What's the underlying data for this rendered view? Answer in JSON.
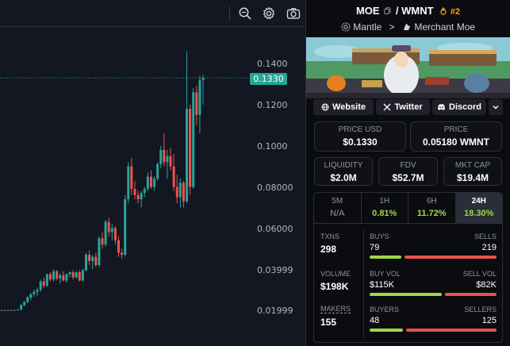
{
  "chart": {
    "y_ticks": [
      "0.1400",
      "0.1200",
      "0.1000",
      "0.08000",
      "0.06000",
      "0.03999",
      "0.01999"
    ],
    "current_price": "0.1330",
    "colors": {
      "up": "#26a69a",
      "down": "#ef5350",
      "bg": "#131722"
    },
    "icons": [
      "screenshot-search-icon",
      "settings-gear-icon",
      "camera-icon"
    ],
    "candles": [
      [
        0.02,
        0.0202,
        0.0198,
        0.0201
      ],
      [
        0.0201,
        0.0203,
        0.0199,
        0.02
      ],
      [
        0.02,
        0.0202,
        0.0199,
        0.0201
      ],
      [
        0.0201,
        0.0203,
        0.02,
        0.02
      ],
      [
        0.02,
        0.0202,
        0.0199,
        0.0202
      ],
      [
        0.0202,
        0.0206,
        0.02,
        0.0203
      ],
      [
        0.0203,
        0.023,
        0.0201,
        0.0225
      ],
      [
        0.0225,
        0.0245,
        0.022,
        0.024
      ],
      [
        0.024,
        0.027,
        0.0235,
        0.0262
      ],
      [
        0.0262,
        0.0285,
        0.025,
        0.0278
      ],
      [
        0.0278,
        0.03,
        0.0265,
        0.029
      ],
      [
        0.029,
        0.031,
        0.027,
        0.03
      ],
      [
        0.03,
        0.035,
        0.029,
        0.034
      ],
      [
        0.034,
        0.036,
        0.031,
        0.032
      ],
      [
        0.032,
        0.038,
        0.0315,
        0.0375
      ],
      [
        0.0375,
        0.0385,
        0.034,
        0.035
      ],
      [
        0.035,
        0.04,
        0.034,
        0.039
      ],
      [
        0.039,
        0.0395,
        0.0345,
        0.0355
      ],
      [
        0.0355,
        0.038,
        0.033,
        0.037
      ],
      [
        0.037,
        0.039,
        0.034,
        0.0345
      ],
      [
        0.0345,
        0.038,
        0.0335,
        0.0375
      ],
      [
        0.0375,
        0.039,
        0.036,
        0.0385
      ],
      [
        0.0385,
        0.0395,
        0.035,
        0.036
      ],
      [
        0.036,
        0.039,
        0.0355,
        0.0385
      ],
      [
        0.0385,
        0.0395,
        0.034,
        0.0345
      ],
      [
        0.0345,
        0.04,
        0.034,
        0.0395
      ],
      [
        0.0395,
        0.048,
        0.039,
        0.047
      ],
      [
        0.047,
        0.049,
        0.042,
        0.044
      ],
      [
        0.044,
        0.047,
        0.04,
        0.046
      ],
      [
        0.046,
        0.048,
        0.041,
        0.042
      ],
      [
        0.042,
        0.056,
        0.041,
        0.055
      ],
      [
        0.055,
        0.058,
        0.05,
        0.052
      ],
      [
        0.052,
        0.064,
        0.051,
        0.063
      ],
      [
        0.063,
        0.065,
        0.056,
        0.058
      ],
      [
        0.058,
        0.062,
        0.054,
        0.06
      ],
      [
        0.06,
        0.061,
        0.052,
        0.054
      ],
      [
        0.054,
        0.056,
        0.046,
        0.048
      ],
      [
        0.048,
        0.05,
        0.045,
        0.047
      ],
      [
        0.047,
        0.076,
        0.046,
        0.074
      ],
      [
        0.074,
        0.092,
        0.072,
        0.09
      ],
      [
        0.09,
        0.094,
        0.076,
        0.079
      ],
      [
        0.079,
        0.083,
        0.074,
        0.076
      ],
      [
        0.076,
        0.078,
        0.072,
        0.074
      ],
      [
        0.074,
        0.078,
        0.07,
        0.077
      ],
      [
        0.077,
        0.08,
        0.075,
        0.079
      ],
      [
        0.079,
        0.087,
        0.078,
        0.085
      ],
      [
        0.085,
        0.088,
        0.079,
        0.08
      ],
      [
        0.08,
        0.085,
        0.078,
        0.084
      ],
      [
        0.084,
        0.092,
        0.083,
        0.091
      ],
      [
        0.091,
        0.1,
        0.089,
        0.098
      ],
      [
        0.098,
        0.106,
        0.09,
        0.092
      ],
      [
        0.092,
        0.098,
        0.084,
        0.095
      ],
      [
        0.095,
        0.099,
        0.088,
        0.09
      ],
      [
        0.09,
        0.096,
        0.078,
        0.08
      ],
      [
        0.08,
        0.086,
        0.072,
        0.075
      ],
      [
        0.075,
        0.084,
        0.07,
        0.082
      ],
      [
        0.082,
        0.083,
        0.07,
        0.073
      ],
      [
        0.073,
        0.146,
        0.072,
        0.118
      ],
      [
        0.118,
        0.12,
        0.076,
        0.08
      ],
      [
        0.08,
        0.128,
        0.079,
        0.126
      ],
      [
        0.126,
        0.129,
        0.11,
        0.115
      ],
      [
        0.115,
        0.134,
        0.106,
        0.132
      ],
      [
        0.132,
        0.1345,
        0.12,
        0.133
      ]
    ]
  },
  "header": {
    "base": "MOE",
    "quote": "WMNT",
    "separator": "/",
    "rank": "#2",
    "chain": "Mantle",
    "dex": "Merchant Moe",
    "chain_sep": ">"
  },
  "links": {
    "website": "Website",
    "twitter": "Twitter",
    "discord": "Discord"
  },
  "price": {
    "usd_label": "PRICE USD",
    "usd_value": "$0.1330",
    "native_label": "PRICE",
    "native_value": "0.05180 WMNT"
  },
  "metrics": {
    "liquidity_label": "LIQUIDITY",
    "liquidity_value": "$2.0M",
    "fdv_label": "FDV",
    "fdv_value": "$52.7M",
    "mcap_label": "MKT CAP",
    "mcap_value": "$19.4M"
  },
  "timeframes": [
    {
      "label": "5M",
      "change": "N/A",
      "color": "#8e94a3"
    },
    {
      "label": "1H",
      "change": "0.81%",
      "color": "#9fd64b"
    },
    {
      "label": "6H",
      "change": "11.72%",
      "color": "#9fd64b"
    },
    {
      "label": "24H",
      "change": "18.30%",
      "color": "#9fd64b"
    }
  ],
  "stats": {
    "txns_label": "TXNS",
    "txns_value": "298",
    "volume_label": "VOLUME",
    "volume_value": "$198K",
    "makers_label": "MAKERS",
    "makers_value": "155",
    "buys_label": "BUYS",
    "buys_value": "79",
    "sells_label": "SELLS",
    "sells_value": "219",
    "buys_fraction": 0.265,
    "buyvol_label": "BUY VOL",
    "buyvol_value": "$115K",
    "sellvol_label": "SELL VOL",
    "sellvol_value": "$82K",
    "buyvol_fraction": 0.584,
    "buyers_label": "BUYERS",
    "buyers_value": "48",
    "sellers_label": "SELLERS",
    "sellers_value": "125",
    "buyers_fraction": 0.277
  }
}
